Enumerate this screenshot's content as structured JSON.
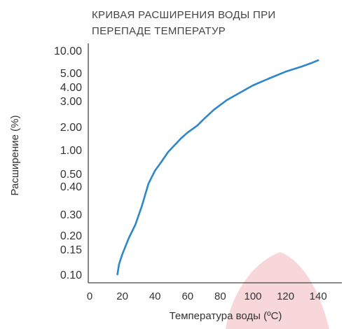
{
  "chart_data": {
    "type": "line",
    "title_lines": [
      "КРИВАЯ РАСШИРЕНИЯ ВОДЫ ПРИ",
      "ПЕРЕПАДЕ ТЕМПЕРАТУР"
    ],
    "xlabel": "Температура воды (ºC)",
    "ylabel": "Расширение (%)",
    "x_ticks": [
      0,
      20,
      40,
      60,
      80,
      100,
      120,
      140
    ],
    "xlim": [
      0,
      150
    ],
    "y_ticks": [
      0.1,
      0.15,
      0.2,
      0.3,
      0.4,
      0.5,
      1.0,
      2.0,
      3.0,
      4.0,
      5.0,
      10.0
    ],
    "y_tick_labels": [
      "0.10",
      "0.15",
      "0.20",
      "0.30",
      "0.40",
      "0.50",
      "1.00",
      "2.00",
      "3.00",
      "4.00",
      "5.00",
      "10.00"
    ],
    "y_scale": "nonlinear (categorical tick spacing)",
    "line_color": "#2f86c9",
    "grid": false,
    "series": [
      {
        "x": [
          17,
          18,
          20,
          24,
          28,
          32,
          36,
          40,
          44,
          48,
          52,
          56,
          60,
          64,
          66,
          70,
          76,
          84,
          100,
          110,
          120,
          130,
          136,
          140
        ],
        "y": [
          0.1,
          0.12,
          0.14,
          0.19,
          0.25,
          0.33,
          0.42,
          0.56,
          0.75,
          0.95,
          1.2,
          1.5,
          1.75,
          1.95,
          2.05,
          2.3,
          2.65,
          3.05,
          4.1,
          4.6,
          5.25,
          6.4,
          7.2,
          7.8
        ]
      }
    ]
  },
  "watermark_color": "#f4c9cd"
}
